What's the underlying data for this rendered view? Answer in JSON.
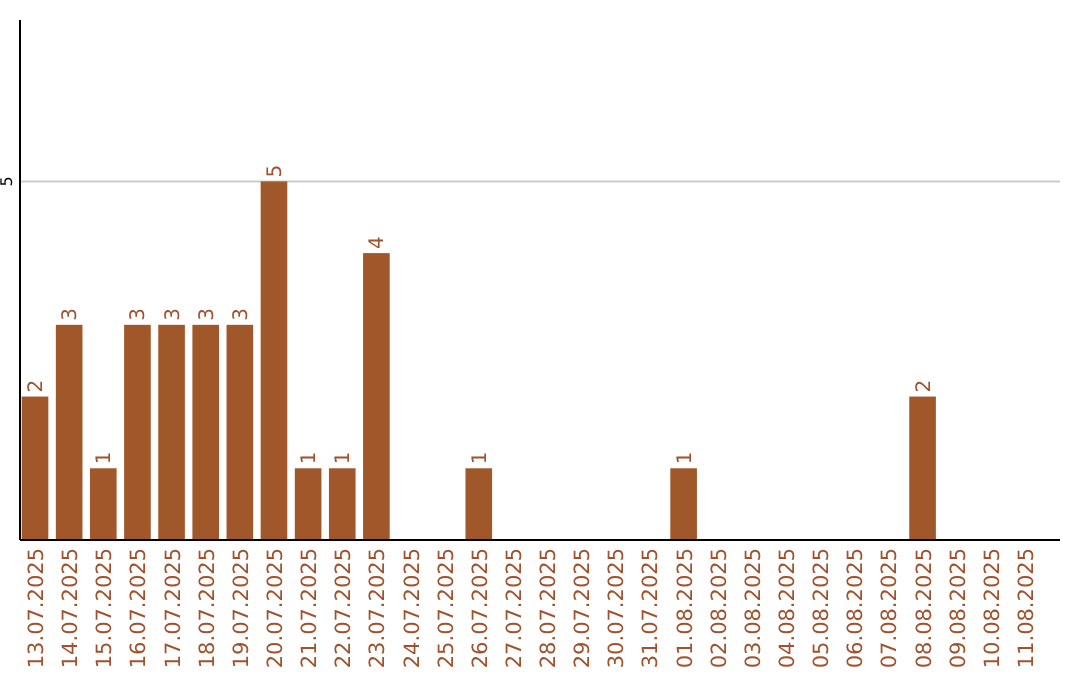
{
  "chart_data": {
    "type": "bar",
    "categories": [
      "13.07.2025",
      "14.07.2025",
      "15.07.2025",
      "16.07.2025",
      "17.07.2025",
      "18.07.2025",
      "19.07.2025",
      "20.07.2025",
      "21.07.2025",
      "22.07.2025",
      "23.07.2025",
      "24.07.2025",
      "25.07.2025",
      "26.07.2025",
      "27.07.2025",
      "28.07.2025",
      "29.07.2025",
      "30.07.2025",
      "31.07.2025",
      "01.08.2025",
      "02.08.2025",
      "03.08.2025",
      "04.08.2025",
      "05.08.2025",
      "06.08.2025",
      "07.08.2025",
      "08.08.2025",
      "09.08.2025",
      "10.08.2025",
      "11.08.2025"
    ],
    "values": [
      2,
      3,
      1,
      3,
      3,
      3,
      3,
      5,
      1,
      1,
      4,
      0,
      0,
      1,
      0,
      0,
      0,
      0,
      0,
      1,
      0,
      0,
      0,
      0,
      0,
      0,
      2,
      0,
      0,
      0
    ],
    "value_labels": [
      "2",
      "3",
      "1",
      "3",
      "3",
      "3",
      "3",
      "5",
      "1",
      "1",
      "4",
      null,
      null,
      "1",
      null,
      null,
      null,
      null,
      null,
      "1",
      null,
      null,
      null,
      null,
      null,
      null,
      "2",
      null,
      null,
      null
    ],
    "color": "#a0582a",
    "ylim": [
      0,
      7.25
    ],
    "yticks": [
      5
    ],
    "grid": "y"
  }
}
